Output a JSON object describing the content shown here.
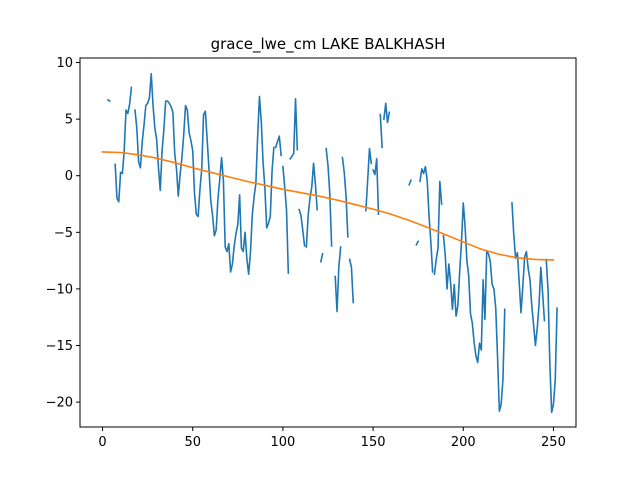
{
  "chart_data": {
    "type": "line",
    "title": "grace_lwe_cm LAKE BALKHASH",
    "xlabel": "",
    "ylabel": "",
    "xlim": [
      -12.5,
      262.5
    ],
    "ylim": [
      -22.2,
      10.4
    ],
    "xticks": [
      0,
      50,
      100,
      150,
      200,
      250
    ],
    "yticks": [
      10,
      5,
      0,
      -5,
      -10,
      -15,
      -20
    ],
    "xtick_labels": [
      "0",
      "50",
      "100",
      "150",
      "200",
      "250"
    ],
    "ytick_labels": [
      "10",
      "5",
      "0",
      "−5",
      "−10",
      "−15",
      "−20"
    ],
    "grid": false,
    "legend": "none",
    "series": [
      {
        "color": "#1f77b4",
        "segments": [
          [
            [
              3,
              6.7
            ],
            [
              4,
              6.6
            ]
          ],
          [
            [
              7,
              1
            ],
            [
              8,
              -2
            ],
            [
              9,
              -2.3
            ],
            [
              10,
              0.3
            ],
            [
              11,
              0.2
            ],
            [
              12,
              2.2
            ],
            [
              13,
              5.8
            ],
            [
              14,
              5.5
            ],
            [
              15,
              6.3
            ],
            [
              16,
              7.8
            ]
          ],
          [
            [
              18,
              5.8
            ],
            [
              19,
              4.2
            ],
            [
              20,
              1.2
            ],
            [
              21,
              0.7
            ],
            [
              22,
              3
            ],
            [
              23,
              4.5
            ],
            [
              24,
              6.2
            ],
            [
              25,
              6.4
            ],
            [
              26,
              6.9
            ],
            [
              27,
              9
            ],
            [
              28,
              6.2
            ],
            [
              29,
              4.2
            ],
            [
              30,
              3.2
            ],
            [
              31,
              0.7
            ],
            [
              32,
              -1.3
            ],
            [
              33,
              2.2
            ],
            [
              34,
              4.1
            ],
            [
              35,
              6.6
            ],
            [
              36,
              6.6
            ],
            [
              37,
              6.4
            ],
            [
              38,
              6.1
            ],
            [
              39,
              5.6
            ],
            [
              40,
              2
            ],
            [
              41,
              0.6
            ],
            [
              42,
              -1.8
            ],
            [
              43,
              0.1
            ],
            [
              44,
              1.6
            ],
            [
              45,
              3.6
            ],
            [
              46,
              6.2
            ],
            [
              47,
              5.8
            ],
            [
              48,
              3.8
            ],
            [
              49,
              3.1
            ],
            [
              50,
              2.2
            ],
            [
              51,
              -1.6
            ],
            [
              52,
              -3.4
            ],
            [
              53,
              -3.6
            ],
            [
              54,
              -1.2
            ],
            [
              55,
              0.6
            ],
            [
              56,
              5.4
            ],
            [
              57,
              5.7
            ],
            [
              58,
              3.2
            ],
            [
              59,
              0.6
            ],
            [
              60,
              -2.2
            ],
            [
              61,
              -3.5
            ],
            [
              62,
              -5.3
            ],
            [
              63,
              -4.8
            ],
            [
              64,
              -2
            ],
            [
              65,
              -0.3
            ],
            [
              66,
              1.6
            ],
            [
              67,
              -0.4
            ],
            [
              68,
              -6.3
            ],
            [
              69,
              -6.7
            ],
            [
              70,
              -6
            ],
            [
              71,
              -8.5
            ],
            [
              72,
              -7.8
            ],
            [
              73,
              -6.2
            ],
            [
              74,
              -5.1
            ],
            [
              75,
              -4.3
            ],
            [
              76,
              -1.7
            ],
            [
              77,
              -6.4
            ],
            [
              78,
              -6.7
            ],
            [
              79,
              -5
            ],
            [
              80,
              -7.3
            ],
            [
              81,
              -8.7
            ],
            [
              82,
              -6.8
            ],
            [
              83,
              -3.5
            ],
            [
              84,
              -1.9
            ],
            [
              85,
              -0.7
            ],
            [
              86,
              3.5
            ],
            [
              87,
              7
            ],
            [
              88,
              4.8
            ],
            [
              89,
              1.2
            ],
            [
              90,
              -1.1
            ],
            [
              91,
              -4.6
            ],
            [
              92,
              -4.2
            ],
            [
              93,
              -3.6
            ],
            [
              94,
              0.5
            ],
            [
              95,
              2.5
            ]
          ],
          [
            [
              96,
              2.5
            ],
            [
              97,
              3
            ],
            [
              98,
              3.5
            ],
            [
              99,
              1.8
            ]
          ],
          [
            [
              100,
              0.8
            ],
            [
              101,
              -1
            ],
            [
              102,
              -3
            ],
            [
              103,
              -8.6
            ]
          ],
          [
            [
              104,
              1.5
            ],
            [
              105,
              1.7
            ],
            [
              106,
              2
            ],
            [
              107,
              6.8
            ],
            [
              108,
              2.3
            ]
          ],
          [
            [
              109,
              -3
            ],
            [
              110,
              -3.5
            ],
            [
              111,
              -4.8
            ],
            [
              112,
              -6.2
            ]
          ],
          [
            [
              113,
              -6.3
            ],
            [
              114,
              -3.5
            ],
            [
              115,
              -2
            ],
            [
              116,
              -1
            ],
            [
              117,
              1.1
            ],
            [
              118,
              -0.7
            ],
            [
              119,
              -3
            ]
          ],
          [
            [
              121,
              -7.6
            ],
            [
              122,
              -6.9
            ]
          ],
          [
            [
              124,
              2.4
            ],
            [
              125,
              0.9
            ],
            [
              126,
              -1.6
            ],
            [
              127,
              -6.2
            ]
          ],
          [
            [
              129,
              -8.9
            ],
            [
              130,
              -12
            ],
            [
              131,
              -8.1
            ],
            [
              132,
              -6.3
            ]
          ],
          [
            [
              133,
              1.6
            ],
            [
              134,
              0.3
            ],
            [
              135,
              -1.8
            ],
            [
              136,
              -5.4
            ]
          ],
          [
            [
              137,
              -7.4
            ],
            [
              138,
              -8.1
            ],
            [
              139,
              -11.2
            ]
          ],
          [
            [
              146,
              -3.1
            ],
            [
              147,
              -0.4
            ],
            [
              148,
              2.4
            ],
            [
              149,
              1.1
            ]
          ],
          [
            [
              150,
              0.5
            ],
            [
              151,
              0.1
            ],
            [
              152,
              1.5
            ],
            [
              153,
              -3.4
            ]
          ],
          [
            [
              154,
              5.4
            ],
            [
              155,
              2.5
            ]
          ],
          [
            [
              156,
              5
            ],
            [
              157,
              6.4
            ],
            [
              158,
              4.7
            ],
            [
              159,
              5.6
            ]
          ],
          [
            [
              170,
              -0.8
            ],
            [
              171,
              -0.4
            ]
          ],
          [
            [
              174,
              -6.1
            ],
            [
              175,
              -5.8
            ]
          ],
          [
            [
              176,
              -0.5
            ],
            [
              177,
              0.6
            ],
            [
              178,
              0.2
            ],
            [
              179,
              0.8
            ],
            [
              180,
              -0.4
            ],
            [
              181,
              -3.5
            ],
            [
              182,
              -5.8
            ],
            [
              183,
              -8.5
            ]
          ],
          [
            [
              184,
              -8.7
            ],
            [
              185,
              -7.4
            ],
            [
              186,
              -6.4
            ],
            [
              187,
              -0.5
            ],
            [
              188,
              -2.5
            ]
          ],
          [
            [
              189,
              -5.3
            ],
            [
              190,
              -7
            ],
            [
              191,
              -10
            ],
            [
              192,
              -7.8
            ],
            [
              193,
              -9.5
            ],
            [
              194,
              -11.8
            ],
            [
              195,
              -9.6
            ],
            [
              196,
              -12.4
            ],
            [
              197,
              -11.5
            ],
            [
              198,
              -8.5
            ],
            [
              199,
              -5.9
            ],
            [
              200,
              -2.4
            ],
            [
              201,
              -4.5
            ],
            [
              202,
              -7.5
            ],
            [
              203,
              -8.8
            ],
            [
              204,
              -12.2
            ],
            [
              205,
              -13
            ],
            [
              206,
              -14.7
            ],
            [
              207,
              -15.9
            ],
            [
              208,
              -16.5
            ],
            [
              209,
              -14.8
            ],
            [
              210,
              -15.4
            ],
            [
              211,
              -9.2
            ],
            [
              212,
              -12.7
            ],
            [
              213,
              -6.7
            ],
            [
              214,
              -6.9
            ],
            [
              215,
              -7.6
            ],
            [
              216,
              -9.6
            ],
            [
              217,
              -10
            ],
            [
              218,
              -11.7
            ],
            [
              219,
              -16
            ],
            [
              220,
              -20.8
            ],
            [
              221,
              -20.2
            ],
            [
              222,
              -18
            ],
            [
              223,
              -11.8
            ]
          ],
          [
            [
              227,
              -2.4
            ],
            [
              228,
              -5.2
            ],
            [
              229,
              -7.3
            ],
            [
              230,
              -6.8
            ],
            [
              231,
              -9.4
            ],
            [
              232,
              -12.1
            ],
            [
              233,
              -9.8
            ],
            [
              234,
              -7.2
            ],
            [
              235,
              -6.7
            ],
            [
              236,
              -8.2
            ],
            [
              237,
              -9.2
            ],
            [
              238,
              -11.5
            ],
            [
              239,
              -13.2
            ],
            [
              240,
              -15
            ],
            [
              241,
              -13.5
            ],
            [
              242,
              -11.4
            ],
            [
              243,
              -8.1
            ],
            [
              244,
              -10.4
            ],
            [
              245,
              -12.8
            ]
          ],
          [
            [
              246,
              -7.4
            ],
            [
              247,
              -10.1
            ],
            [
              248,
              -16.6
            ],
            [
              249,
              -20.9
            ],
            [
              250,
              -20.2
            ],
            [
              251,
              -18
            ],
            [
              252,
              -11.7
            ]
          ]
        ]
      },
      {
        "color": "#ff7f0e",
        "points": [
          [
            0,
            2.1
          ],
          [
            10,
            2.05
          ],
          [
            20,
            1.85
          ],
          [
            30,
            1.55
          ],
          [
            40,
            1.15
          ],
          [
            50,
            0.7
          ],
          [
            60,
            0.3
          ],
          [
            70,
            -0.1
          ],
          [
            80,
            -0.5
          ],
          [
            90,
            -0.85
          ],
          [
            100,
            -1.2
          ],
          [
            110,
            -1.5
          ],
          [
            120,
            -1.8
          ],
          [
            130,
            -2.15
          ],
          [
            140,
            -2.55
          ],
          [
            150,
            -2.95
          ],
          [
            160,
            -3.4
          ],
          [
            170,
            -3.95
          ],
          [
            180,
            -4.55
          ],
          [
            190,
            -5.2
          ],
          [
            200,
            -5.85
          ],
          [
            210,
            -6.5
          ],
          [
            220,
            -6.95
          ],
          [
            230,
            -7.25
          ],
          [
            240,
            -7.4
          ],
          [
            250,
            -7.45
          ]
        ]
      }
    ]
  }
}
